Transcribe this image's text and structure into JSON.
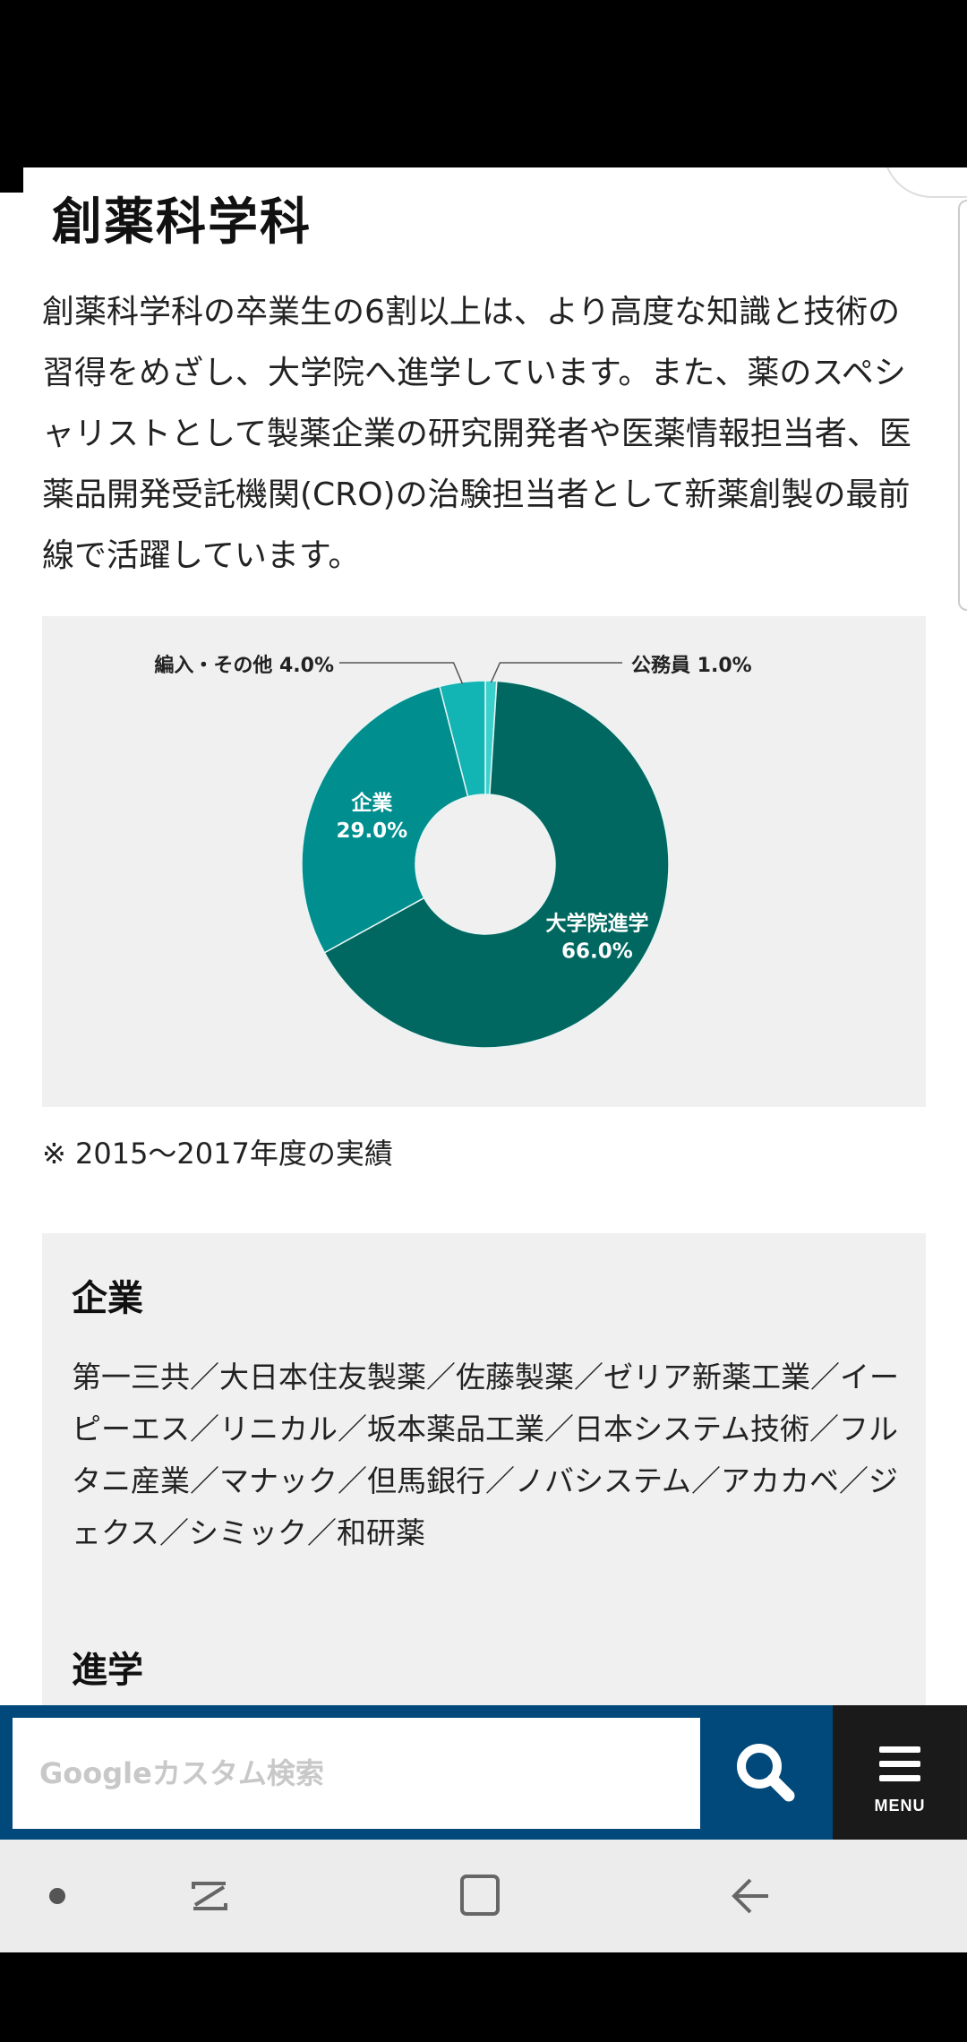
{
  "section_title": "創薬科学科",
  "intro_text": "創薬科学科の卒業生の6割以上は、より高度な知識と技術の習得をめざし、大学院へ進学しています。また、薬のスペシャリストとして製薬企業の研究開発者や医薬情報担当者、医薬品開発受託機関(CRO)の治験担当者として新薬創製の最前線で活躍しています。",
  "chart_data": {
    "type": "pie",
    "donut": true,
    "slices": [
      {
        "label": "大学院進学",
        "value": 66.0,
        "display": "66.0%",
        "color": "#006860"
      },
      {
        "label": "企業",
        "value": 29.0,
        "display": "29.0%",
        "color": "#008e8e"
      },
      {
        "label": "編入・その他",
        "value": 4.0,
        "display": "4.0%",
        "color": "#12b4b4"
      },
      {
        "label": "公務員",
        "value": 1.0,
        "display": "1.0%",
        "color": "#3cd0cc"
      }
    ],
    "legend": "none"
  },
  "footnote": "※ 2015〜2017年度の実績",
  "companies": {
    "heading": "企業",
    "list": "第一三共／大日本住友製薬／佐藤製薬／ゼリア新薬工業／イーピーエス／リニカル／坂本薬品工業／日本システム技術／フルタニ産業／マナック／但馬銀行／ノバシステム／アカカベ／ジェクス／シミック／和研薬"
  },
  "further_heading": "進学",
  "search": {
    "placeholder": "Googleカスタム検索",
    "button_icon": "search-icon"
  },
  "menu": {
    "label": "MENU",
    "icon": "hamburger-icon"
  },
  "colors": {
    "search_bar": "#00497a",
    "menu_bg": "#1a1a1a",
    "panel_bg": "#f0f0f0"
  }
}
